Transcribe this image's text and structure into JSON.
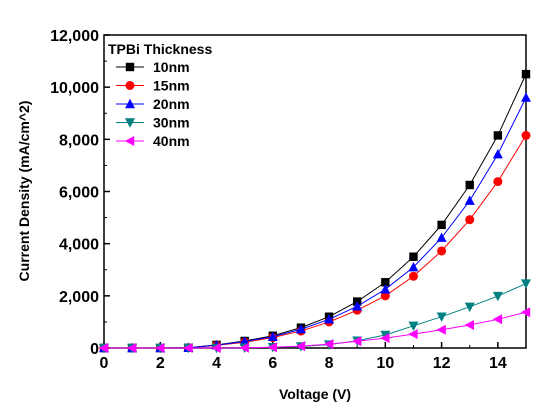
{
  "chart_data": {
    "type": "line",
    "xlabel": "Voltage (V)",
    "ylabel": "Current Density (mA/cm^2)",
    "xlim": [
      0,
      15
    ],
    "ylim": [
      0,
      12000
    ],
    "xticks": [
      0,
      2,
      4,
      6,
      8,
      10,
      12,
      14
    ],
    "xtick_labels": [
      "0",
      "2",
      "4",
      "6",
      "8",
      "10",
      "12",
      "14"
    ],
    "yticks": [
      0,
      2000,
      4000,
      6000,
      8000,
      10000,
      12000
    ],
    "ytick_labels": [
      "0",
      "2,000",
      "4,000",
      "6,000",
      "8,000",
      "10,000",
      "12,000"
    ],
    "grid": false,
    "legend": {
      "title": "TPBi Thickness",
      "placement": "top-left"
    },
    "x": [
      0,
      1,
      2,
      3,
      4,
      5,
      6,
      7,
      8,
      9,
      10,
      11,
      12,
      13,
      14,
      15
    ],
    "series": [
      {
        "name": "10nm",
        "color": "#000000",
        "marker": "square",
        "values": [
          0,
          0,
          0,
          10,
          120,
          270,
          470,
          780,
          1200,
          1780,
          2520,
          3500,
          4720,
          6250,
          8150,
          10500
        ]
      },
      {
        "name": "15nm",
        "color": "#ff0000",
        "marker": "circle",
        "values": [
          0,
          0,
          0,
          10,
          100,
          220,
          400,
          650,
          1000,
          1450,
          2000,
          2750,
          3720,
          4920,
          6380,
          8150
        ]
      },
      {
        "name": "20nm",
        "color": "#0000ff",
        "marker": "triangle-up",
        "values": [
          0,
          0,
          0,
          10,
          110,
          250,
          430,
          720,
          1100,
          1600,
          2250,
          3100,
          4230,
          5650,
          7430,
          9600
        ]
      },
      {
        "name": "30nm",
        "color": "#008080",
        "marker": "triangle-down",
        "values": [
          0,
          0,
          0,
          0,
          0,
          10,
          30,
          60,
          130,
          280,
          500,
          850,
          1200,
          1580,
          1990,
          2470
        ]
      },
      {
        "name": "40nm",
        "color": "#ff00ff",
        "marker": "triangle-left",
        "values": [
          0,
          0,
          0,
          0,
          0,
          10,
          30,
          70,
          150,
          260,
          380,
          530,
          700,
          880,
          1100,
          1370
        ]
      }
    ]
  }
}
